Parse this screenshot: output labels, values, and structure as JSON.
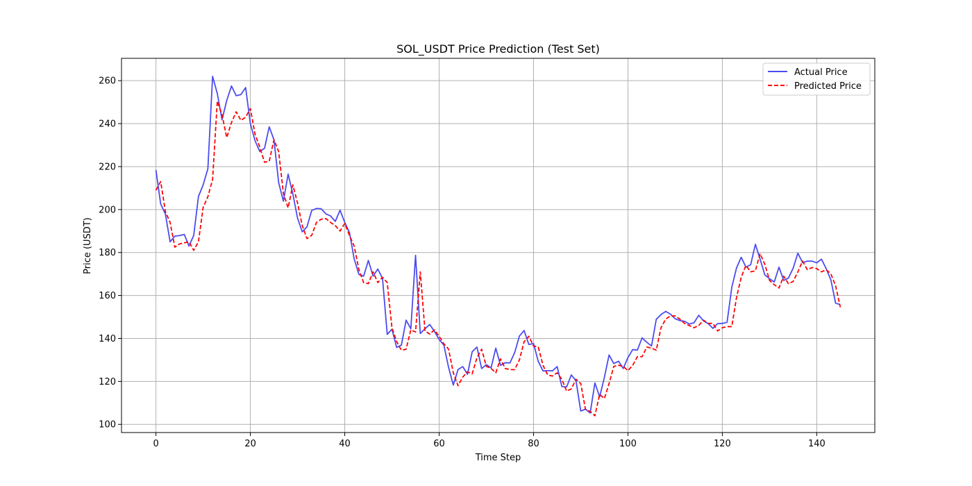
{
  "chart_data": {
    "type": "line",
    "title": "SOL_USDT Price Prediction (Test Set)",
    "xlabel": "Time Step",
    "ylabel": "Price (USDT)",
    "xlim": [
      -7.3,
      152.3
    ],
    "ylim": [
      96.2,
      270.4
    ],
    "xticks": [
      0,
      20,
      40,
      60,
      80,
      100,
      120,
      140
    ],
    "yticks": [
      100,
      120,
      140,
      160,
      180,
      200,
      220,
      240,
      260
    ],
    "grid": true,
    "legend_position": "top-right",
    "series": [
      {
        "name": "Actual Price",
        "color": "#4b4bf0",
        "style": "solid",
        "values": [
          218.4,
          202.6,
          197.9,
          185.0,
          187.6,
          187.9,
          188.4,
          183.0,
          188.0,
          206.0,
          211.5,
          219.0,
          262.0,
          254.0,
          241.8,
          250.8,
          257.5,
          253.0,
          253.5,
          256.8,
          240.0,
          232.0,
          227.0,
          228.5,
          238.5,
          232.5,
          212.5,
          203.9,
          216.5,
          207.3,
          196.0,
          189.6,
          192.0,
          199.6,
          200.5,
          200.4,
          198.0,
          197.0,
          194.5,
          199.7,
          194.0,
          189.3,
          177.0,
          169.8,
          169.0,
          176.3,
          169.0,
          172.3,
          168.0,
          141.9,
          144.3,
          135.8,
          136.9,
          148.5,
          144.5,
          178.7,
          142.3,
          144.5,
          146.5,
          143.3,
          139.5,
          136.9,
          126.5,
          118.3,
          125.5,
          126.9,
          123.3,
          133.8,
          136.0,
          126.0,
          127.8,
          126.3,
          135.5,
          127.5,
          128.7,
          128.6,
          133.4,
          141.1,
          143.7,
          137.2,
          137.6,
          129.3,
          124.9,
          125.0,
          124.9,
          126.9,
          117.6,
          117.4,
          123.0,
          120.3,
          106.2,
          107.1,
          105.3,
          119.3,
          112.8,
          121.8,
          132.3,
          128.3,
          129.4,
          126.0,
          131.1,
          134.8,
          134.6,
          140.3,
          138.2,
          136.5,
          148.9,
          151.1,
          152.6,
          151.3,
          149.2,
          148.3,
          148.0,
          146.7,
          147.3,
          150.8,
          148.2,
          146.9,
          144.7,
          146.9,
          147.0,
          147.5,
          163.8,
          172.8,
          177.8,
          173.2,
          174.3,
          183.8,
          176.9,
          169.6,
          167.8,
          166.3,
          173.2,
          167.0,
          168.1,
          172.7,
          179.7,
          175.3,
          176.0,
          176.0,
          175.2,
          176.9,
          172.5,
          167.2,
          156.4,
          155.8
        ]
      },
      {
        "name": "Predicted Price",
        "color": "#ff0000",
        "style": "dashed",
        "values": [
          209.0,
          213.0,
          199.0,
          194.0,
          182.5,
          184.0,
          184.5,
          185.0,
          181.0,
          185.0,
          201.0,
          206.0,
          214.0,
          250.5,
          244.0,
          233.5,
          240.5,
          245.5,
          241.5,
          243.0,
          247.0,
          235.0,
          229.0,
          222.0,
          222.5,
          232.5,
          227.0,
          207.5,
          200.8,
          211.5,
          203.0,
          192.5,
          186.5,
          188.0,
          194.0,
          195.5,
          195.8,
          194.0,
          192.5,
          190.0,
          193.5,
          188.0,
          183.0,
          172.0,
          166.0,
          165.5,
          171.0,
          166.0,
          168.5,
          166.0,
          145.0,
          138.5,
          134.5,
          135.0,
          144.0,
          143.0,
          171.0,
          143.5,
          142.0,
          144.0,
          141.0,
          137.5,
          135.0,
          124.0,
          118.0,
          122.0,
          124.5,
          123.5,
          131.0,
          135.0,
          127.0,
          126.0,
          124.0,
          130.5,
          126.0,
          125.5,
          125.5,
          130.0,
          138.5,
          141.0,
          136.5,
          136.0,
          127.5,
          123.0,
          122.5,
          124.0,
          121.0,
          115.5,
          116.5,
          121.0,
          119.0,
          107.0,
          106.0,
          104.0,
          114.0,
          112.0,
          119.0,
          127.0,
          127.5,
          127.0,
          125.0,
          127.5,
          131.5,
          131.5,
          136.0,
          135.5,
          134.5,
          145.0,
          149.0,
          150.5,
          150.5,
          149.0,
          147.0,
          146.0,
          145.0,
          146.0,
          148.5,
          147.0,
          147.0,
          143.5,
          145.0,
          145.5,
          145.5,
          159.0,
          168.5,
          174.0,
          171.0,
          171.5,
          179.5,
          174.5,
          167.0,
          165.0,
          163.5,
          169.0,
          165.5,
          166.5,
          171.0,
          176.0,
          172.0,
          173.0,
          172.5,
          171.0,
          172.0,
          170.0,
          164.5,
          154.5
        ]
      }
    ]
  }
}
